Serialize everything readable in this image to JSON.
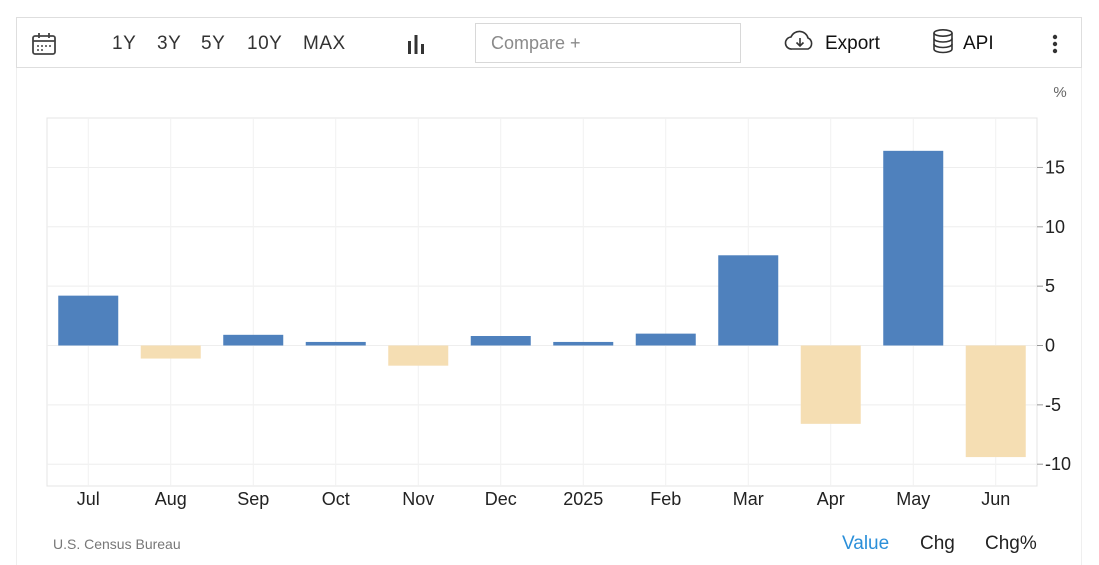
{
  "toolbar": {
    "calendar_icon": "calendar-icon",
    "ranges": [
      "1Y",
      "3Y",
      "5Y",
      "10Y",
      "MAX"
    ],
    "chart_type_icon": "bar-chart-icon",
    "compare_placeholder": "Compare +",
    "export_label": "Export",
    "export_icon": "cloud-download-icon",
    "api_label": "API",
    "api_icon": "database-icon",
    "more_icon": "vertical-dots-icon"
  },
  "footer": {
    "source": "U.S. Census Bureau",
    "tabs": [
      {
        "label": "Value",
        "active": true
      },
      {
        "label": "Chg",
        "active": false
      },
      {
        "label": "Chg%",
        "active": false
      }
    ]
  },
  "colors": {
    "positive": "#4f81bd",
    "negative": "#f5deb3",
    "active_tab": "#2b8fd9"
  },
  "chart_data": {
    "type": "bar",
    "unit_label": "%",
    "categories": [
      "Jul",
      "Aug",
      "Sep",
      "Oct",
      "Nov",
      "Dec",
      "2025",
      "Feb",
      "Mar",
      "Apr",
      "May",
      "Jun"
    ],
    "values": [
      4.2,
      -1.1,
      0.9,
      0.3,
      -1.7,
      0.8,
      0.3,
      1.0,
      7.6,
      -6.6,
      16.4,
      -9.4
    ],
    "yticks": [
      15,
      10,
      5,
      0,
      -5,
      -10
    ],
    "ylim": [
      -12,
      19
    ],
    "grid": true,
    "y_axis_side": "right"
  }
}
